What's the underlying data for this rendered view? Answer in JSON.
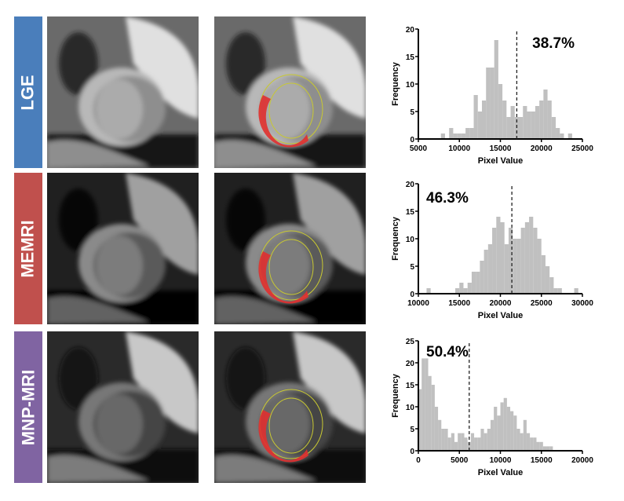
{
  "rows": [
    {
      "label": "LGE",
      "color": "#4a7ebb"
    },
    {
      "label": "MEMRI",
      "color": "#c0504d"
    },
    {
      "label": "MNP-MRI",
      "color": "#8064a2"
    }
  ],
  "chart_data": [
    {
      "type": "bar",
      "subtype": "histogram",
      "xlabel": "Pixel Value",
      "ylabel": "Frequency",
      "xlim": [
        5000,
        25000
      ],
      "ylim": [
        0,
        20
      ],
      "xticks": [
        "5000",
        "10000",
        "15000",
        "20000",
        "25000"
      ],
      "yticks": [
        "0",
        "5",
        "10",
        "15",
        "20"
      ],
      "bin_start": 7750,
      "bin_width": 500,
      "values": [
        1,
        0,
        2,
        1,
        1,
        1,
        2,
        2,
        8,
        5,
        7,
        13,
        13,
        18,
        10,
        7,
        4,
        6,
        4,
        4,
        6,
        5,
        5,
        6,
        7,
        9,
        7,
        4,
        2,
        1,
        0,
        1
      ],
      "threshold": 17000,
      "annotation": "38.7%",
      "annotation_position": "top-right",
      "bar_color": "#c0c0c0"
    },
    {
      "type": "bar",
      "subtype": "histogram",
      "xlabel": "Pixel Value",
      "ylabel": "Frequency",
      "xlim": [
        10000,
        30000
      ],
      "ylim": [
        0,
        20
      ],
      "xticks": [
        "10000",
        "15000",
        "20000",
        "25000",
        "30000"
      ],
      "yticks": [
        "0",
        "5",
        "10",
        "15",
        "20"
      ],
      "bin_start": 11000,
      "bin_width": 500,
      "values": [
        1,
        0,
        0,
        0,
        0,
        0,
        0,
        1,
        2,
        1,
        2,
        4,
        4,
        6,
        8,
        9,
        12,
        14,
        13,
        9,
        12,
        10,
        10,
        12,
        13,
        14,
        12,
        10,
        7,
        5,
        3,
        1,
        1,
        0,
        0,
        0,
        1
      ],
      "threshold": 21400,
      "annotation": "46.3%",
      "annotation_position": "top-left",
      "bar_color": "#c0c0c0"
    },
    {
      "type": "bar",
      "subtype": "histogram",
      "xlabel": "Pixel Value",
      "ylabel": "Frequency",
      "xlim": [
        0,
        20000
      ],
      "ylim": [
        0,
        25
      ],
      "xticks": [
        "0",
        "5000",
        "10000",
        "15000",
        "20000"
      ],
      "yticks": [
        "0",
        "5",
        "10",
        "15",
        "20",
        "25"
      ],
      "bin_start": 0,
      "bin_width": 400,
      "values": [
        14,
        21,
        21,
        17,
        15,
        10,
        7,
        5,
        5,
        3,
        4,
        2,
        4,
        4,
        3,
        2,
        4,
        3,
        3,
        5,
        4,
        5,
        7,
        10,
        8,
        11,
        12,
        10,
        9,
        8,
        5,
        4,
        7,
        4,
        3,
        3,
        2,
        2,
        1,
        1,
        1
      ],
      "threshold": 6200,
      "annotation": "50.4%",
      "annotation_position": "top-left",
      "bar_color": "#c0c0c0"
    }
  ]
}
